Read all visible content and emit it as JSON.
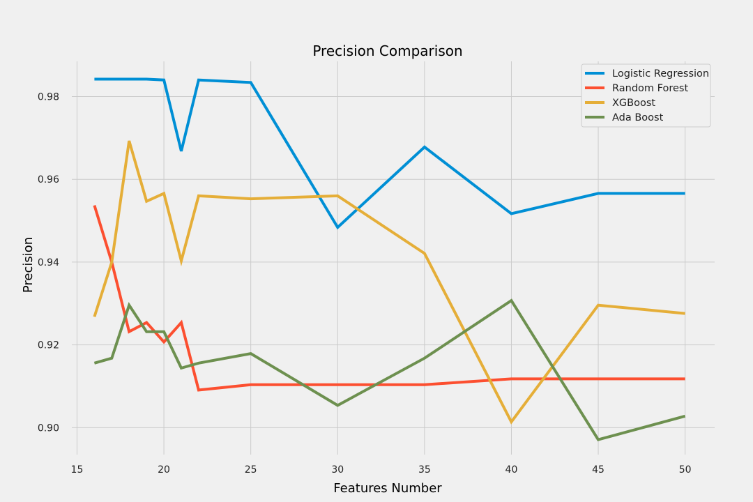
{
  "chart_data": {
    "type": "line",
    "title": "Precision Comparison",
    "xlabel": "Features Number",
    "ylabel": "Precision",
    "xlim": [
      14.7,
      51.7
    ],
    "ylim": [
      0.8935,
      0.9885
    ],
    "xticks": [
      15,
      20,
      25,
      30,
      35,
      40,
      45,
      50
    ],
    "xtick_labels": [
      "15",
      "20",
      "25",
      "30",
      "35",
      "40",
      "45",
      "50"
    ],
    "yticks": [
      0.9,
      0.92,
      0.94,
      0.96,
      0.98
    ],
    "ytick_labels": [
      "0.90",
      "0.92",
      "0.94",
      "0.96",
      "0.98"
    ],
    "grid": true,
    "legend_position": "top-right",
    "series": [
      {
        "name": "Logistic Regression",
        "color": "#008fd5",
        "x": [
          16,
          17,
          18,
          19,
          20,
          21,
          22,
          25,
          30,
          35,
          40,
          45,
          50
        ],
        "y": [
          0.9842,
          0.9842,
          0.9842,
          0.9842,
          0.984,
          0.9668,
          0.984,
          0.9834,
          0.9484,
          0.9678,
          0.9517,
          0.9566,
          0.9566
        ]
      },
      {
        "name": "Random Forest",
        "color": "#fc4f30",
        "x": [
          16,
          17,
          18,
          19,
          20,
          21,
          22,
          25,
          30,
          35,
          40,
          45,
          50
        ],
        "y": [
          0.9537,
          0.94,
          0.9232,
          0.9254,
          0.9207,
          0.9254,
          0.9091,
          0.9104,
          0.9104,
          0.9104,
          0.9118,
          0.9118,
          0.9118
        ]
      },
      {
        "name": "XGBoost",
        "color": "#e5ae38",
        "x": [
          16,
          17,
          18,
          19,
          20,
          21,
          22,
          25,
          30,
          35,
          40,
          45,
          50
        ],
        "y": [
          0.9268,
          0.94,
          0.9693,
          0.9547,
          0.9566,
          0.9403,
          0.956,
          0.9553,
          0.956,
          0.9421,
          0.9014,
          0.9296,
          0.9276
        ]
      },
      {
        "name": "Ada Boost",
        "color": "#6d904f",
        "x": [
          16,
          17,
          18,
          19,
          20,
          21,
          22,
          25,
          30,
          35,
          40,
          45,
          50
        ],
        "y": [
          0.9156,
          0.9168,
          0.9296,
          0.9232,
          0.9232,
          0.9144,
          0.9156,
          0.9179,
          0.9054,
          0.9168,
          0.9307,
          0.8971,
          0.9028
        ]
      }
    ]
  }
}
